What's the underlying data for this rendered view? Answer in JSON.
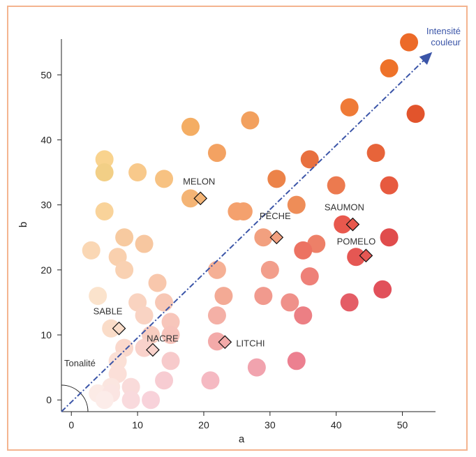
{
  "chart_data": {
    "type": "scatter",
    "title": "",
    "xlabel": "a",
    "ylabel": "b",
    "xlim": [
      -1.5,
      55
    ],
    "ylim": [
      -1.8,
      55.5
    ],
    "x_ticks": [
      0,
      10,
      20,
      30,
      40,
      50
    ],
    "y_ticks": [
      0,
      10,
      20,
      30,
      40,
      50
    ],
    "x_tick_labels": [
      "0",
      "10",
      "20",
      "30",
      "40",
      "50"
    ],
    "y_tick_labels": [
      "0",
      "10",
      "20",
      "30",
      "40",
      "50"
    ],
    "grid": false,
    "points": [
      {
        "x": 51,
        "y": 55,
        "color": "#ec6a28"
      },
      {
        "x": 48,
        "y": 51,
        "color": "#ee7229"
      },
      {
        "x": 52,
        "y": 44,
        "color": "#e2542c"
      },
      {
        "x": 42,
        "y": 45,
        "color": "#ef7a36"
      },
      {
        "x": 27,
        "y": 43,
        "color": "#f2a05e"
      },
      {
        "x": 18,
        "y": 42,
        "color": "#f4ad63"
      },
      {
        "x": 46,
        "y": 38,
        "color": "#e7643a"
      },
      {
        "x": 22,
        "y": 38,
        "color": "#f3a262"
      },
      {
        "x": 36,
        "y": 37,
        "color": "#e8703f"
      },
      {
        "x": 5,
        "y": 37,
        "color": "#f9d38e"
      },
      {
        "x": 5,
        "y": 35,
        "color": "#f2cf86"
      },
      {
        "x": 10,
        "y": 35,
        "color": "#f8c98b"
      },
      {
        "x": 14,
        "y": 34,
        "color": "#f7c282"
      },
      {
        "x": 31,
        "y": 34,
        "color": "#ec8349"
      },
      {
        "x": 40,
        "y": 33,
        "color": "#ec7a4f"
      },
      {
        "x": 48,
        "y": 33,
        "color": "#e75a3f"
      },
      {
        "x": 18,
        "y": 31,
        "color": "#f4b475"
      },
      {
        "x": 34,
        "y": 30,
        "color": "#ee8d58"
      },
      {
        "x": 25,
        "y": 29,
        "color": "#f4a16e"
      },
      {
        "x": 26,
        "y": 29,
        "color": "#f4a16e"
      },
      {
        "x": 5,
        "y": 29,
        "color": "#f9d39a"
      },
      {
        "x": 41,
        "y": 27,
        "color": "#e8584d"
      },
      {
        "x": 48,
        "y": 25,
        "color": "#e04c4c"
      },
      {
        "x": 8,
        "y": 25,
        "color": "#f7caa0"
      },
      {
        "x": 29,
        "y": 25,
        "color": "#f2a07f"
      },
      {
        "x": 11,
        "y": 24,
        "color": "#f7c7a0"
      },
      {
        "x": 37,
        "y": 24,
        "color": "#ed8068"
      },
      {
        "x": 35,
        "y": 23,
        "color": "#ec7262"
      },
      {
        "x": 3,
        "y": 23,
        "color": "#fad7b4"
      },
      {
        "x": 7,
        "y": 22,
        "color": "#f9d0ae"
      },
      {
        "x": 43,
        "y": 22,
        "color": "#e55753"
      },
      {
        "x": 8,
        "y": 20,
        "color": "#f9d1b2"
      },
      {
        "x": 22,
        "y": 20,
        "color": "#f5b095"
      },
      {
        "x": 30,
        "y": 20,
        "color": "#f29e8b"
      },
      {
        "x": 36,
        "y": 19,
        "color": "#ee8078"
      },
      {
        "x": 13,
        "y": 18,
        "color": "#f8c7ac"
      },
      {
        "x": 47,
        "y": 17,
        "color": "#e1505a"
      },
      {
        "x": 4,
        "y": 16,
        "color": "#fbe3cc"
      },
      {
        "x": 23,
        "y": 16,
        "color": "#f3aa95"
      },
      {
        "x": 29,
        "y": 16,
        "color": "#f19a8e"
      },
      {
        "x": 33,
        "y": 15,
        "color": "#ef918a"
      },
      {
        "x": 42,
        "y": 15,
        "color": "#e45d66"
      },
      {
        "x": 10,
        "y": 15,
        "color": "#f9d3c0"
      },
      {
        "x": 14,
        "y": 15,
        "color": "#f7c7b5"
      },
      {
        "x": 11,
        "y": 13,
        "color": "#f9d3c3"
      },
      {
        "x": 22,
        "y": 13,
        "color": "#f4b0a6"
      },
      {
        "x": 35,
        "y": 13,
        "color": "#ec7f84"
      },
      {
        "x": 15,
        "y": 12,
        "color": "#f7c6bb"
      },
      {
        "x": 6,
        "y": 11,
        "color": "#fadcc8"
      },
      {
        "x": 12,
        "y": 10,
        "color": "#f8cdc0"
      },
      {
        "x": 15,
        "y": 10,
        "color": "#f7c3bb"
      },
      {
        "x": 22,
        "y": 9,
        "color": "#f3aaa9"
      },
      {
        "x": 8,
        "y": 8,
        "color": "#fad8cc"
      },
      {
        "x": 11,
        "y": 8,
        "color": "#f9d2cb"
      },
      {
        "x": 15,
        "y": 6,
        "color": "#f7cacb"
      },
      {
        "x": 34,
        "y": 6,
        "color": "#ec8090"
      },
      {
        "x": 7,
        "y": 6,
        "color": "#fbe0d6"
      },
      {
        "x": 28,
        "y": 5,
        "color": "#f1a3ae"
      },
      {
        "x": 7,
        "y": 4,
        "color": "#fbdfd8"
      },
      {
        "x": 14,
        "y": 3,
        "color": "#f7ccd2"
      },
      {
        "x": 21,
        "y": 3,
        "color": "#f5b9c2"
      },
      {
        "x": 6,
        "y": 2,
        "color": "#fbe6e0"
      },
      {
        "x": 9,
        "y": 2,
        "color": "#f9dbda"
      },
      {
        "x": 4,
        "y": 1,
        "color": "#fcebe6"
      },
      {
        "x": 6,
        "y": 1,
        "color": "#fbe5e2"
      },
      {
        "x": 5,
        "y": 0,
        "color": "#fcece9"
      },
      {
        "x": 9,
        "y": 0,
        "color": "#f9dadd"
      },
      {
        "x": 12,
        "y": 0,
        "color": "#f8d2da"
      }
    ],
    "labeled_points": [
      {
        "label": "MELON",
        "x": 19.5,
        "y": 31,
        "color": "#f4b475"
      },
      {
        "label": "PÊCHE",
        "x": 31,
        "y": 25,
        "color": "#f2a07f"
      },
      {
        "label": "SAUMON",
        "x": 42.5,
        "y": 27,
        "color": "#e8584d"
      },
      {
        "label": "POMELO",
        "x": 44.5,
        "y": 22.2,
        "color": "#e55753"
      },
      {
        "label": "SABLE",
        "x": 7.2,
        "y": 11,
        "color": "#fadcc8"
      },
      {
        "label": "NACRE",
        "x": 12.3,
        "y": 7.7,
        "color": "#f9d2cb"
      },
      {
        "label": "LITCHI",
        "x": 23.2,
        "y": 8.9,
        "color": "#f3aaa9"
      }
    ],
    "annotations": {
      "arrow_label_line1": "Intensité",
      "arrow_label_line2": "couleur",
      "hue_label": "Tonalité"
    },
    "arrow": {
      "from": [
        -1.5,
        -1.8
      ],
      "to": [
        54.5,
        53.5
      ],
      "color": "#3b55a8"
    }
  }
}
